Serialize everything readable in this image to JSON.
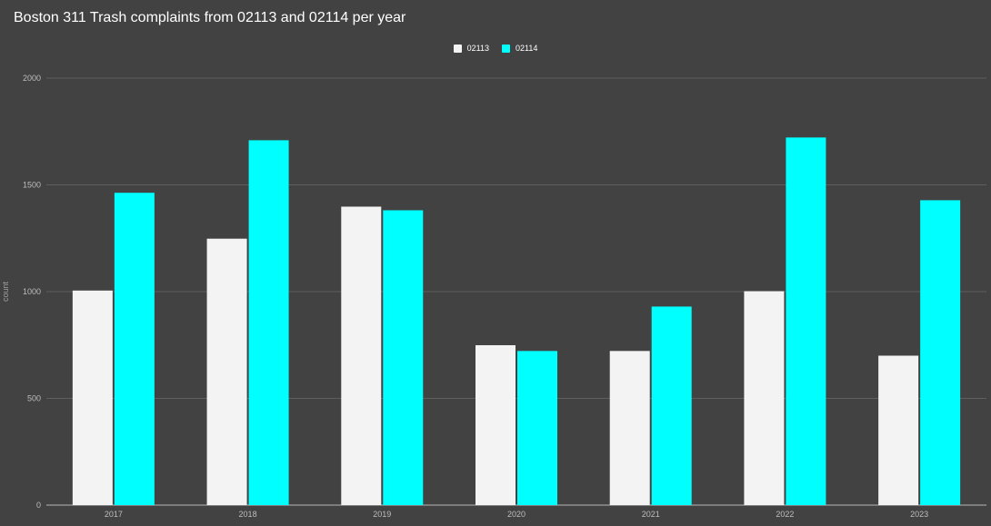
{
  "chart_data": {
    "type": "bar",
    "title": "Boston 311 Trash complaints from 02113 and 02114 per year",
    "xlabel": "",
    "ylabel": "count",
    "categories": [
      "2017",
      "2018",
      "2019",
      "2020",
      "2021",
      "2022",
      "2023"
    ],
    "series": [
      {
        "name": "02113",
        "color": "#f3f3f3",
        "values": [
          1005,
          1248,
          1398,
          749,
          722,
          1002,
          700
        ]
      },
      {
        "name": "02114",
        "color": "#00ffff",
        "values": [
          1463,
          1709,
          1381,
          722,
          930,
          1722,
          1428
        ]
      }
    ],
    "ylim": [
      0,
      2000
    ],
    "yticks": [
      "0",
      "500",
      "1000",
      "1500",
      "2000"
    ],
    "grid": true,
    "legend_position": "top-center",
    "colors": {
      "background": "#424242",
      "gridline": "#6a6a6a",
      "text": "#ffffff",
      "tick_text": "#bdbdbd"
    }
  }
}
